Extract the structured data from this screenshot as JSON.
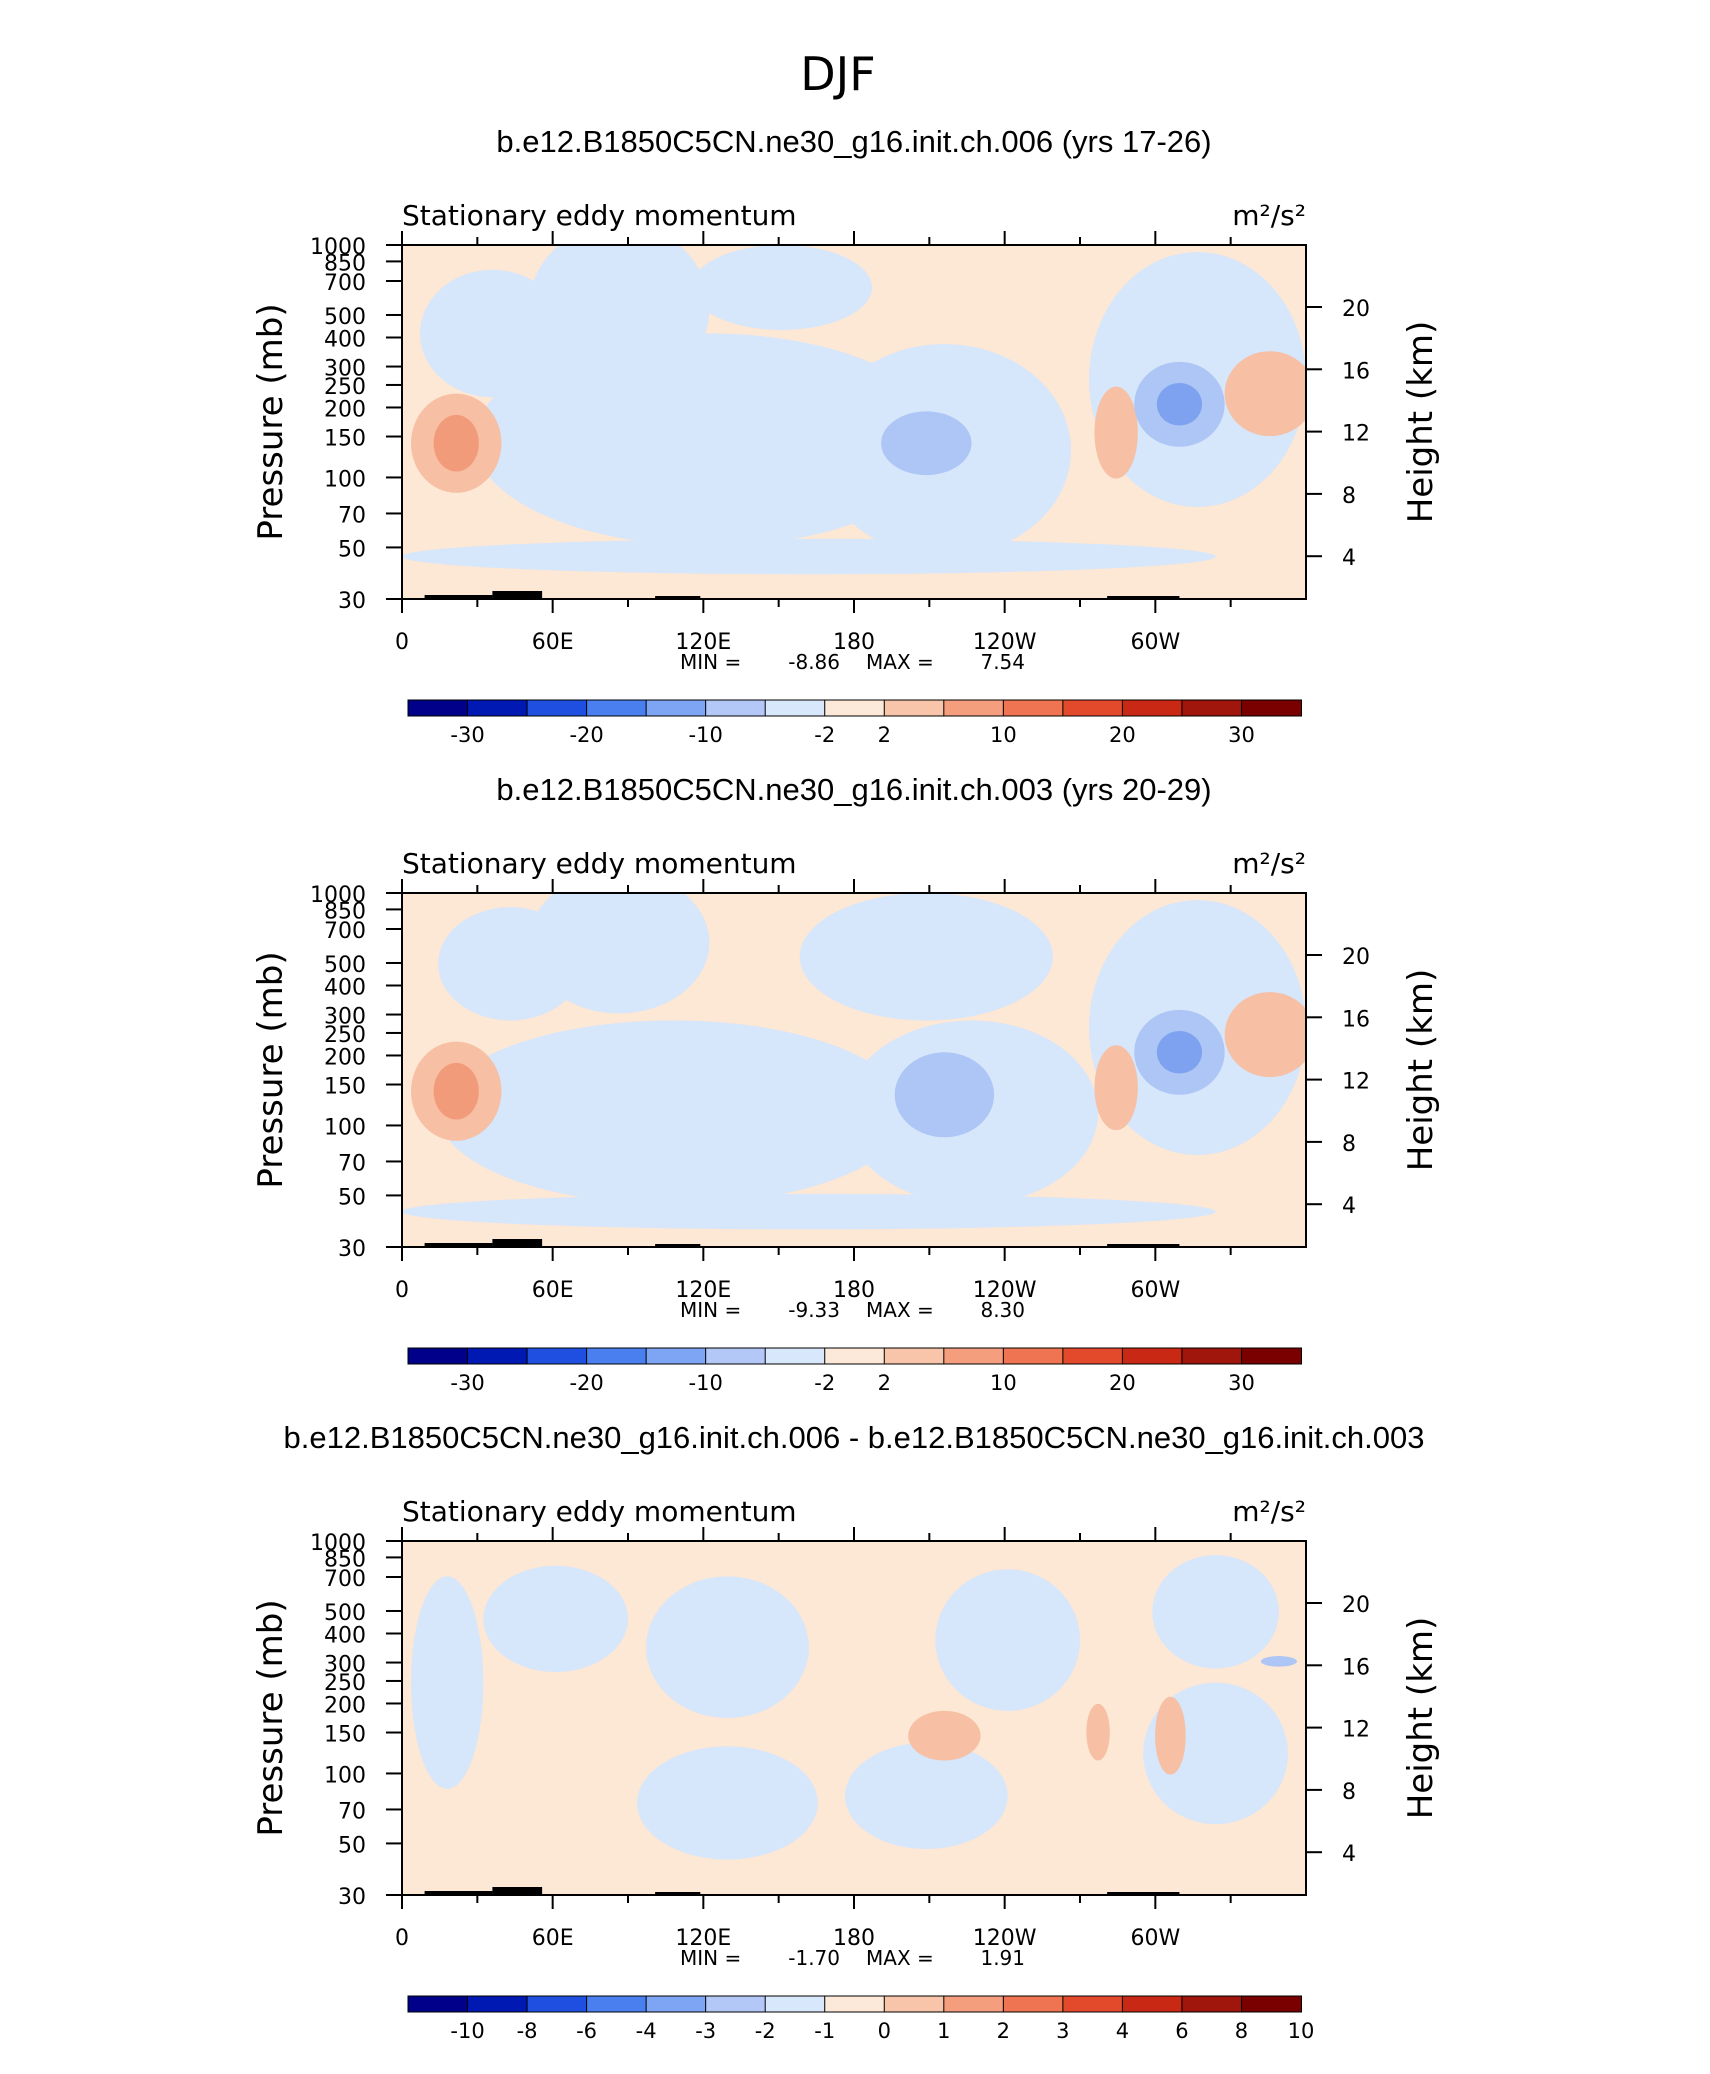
{
  "figure_title": "DJF",
  "chart_data": [
    {
      "type": "heatmap",
      "title": "b.e12.B1850C5CN.ne30_g16.init.ch.006 (yrs 17-26)",
      "left_string": "Stationary eddy momentum",
      "units": "m²/s²",
      "ylabel": "Pressure (mb)",
      "ylabel_right": "Height (km)",
      "x_tick_labels": [
        "0",
        "60E",
        "120E",
        "180",
        "120W",
        "60W"
      ],
      "y_tick_labels": [
        "30",
        "50",
        "70",
        "100",
        "150",
        "200",
        "250",
        "300",
        "400",
        "500",
        "700",
        "850",
        "1000"
      ],
      "y_right_tick_labels": [
        "20",
        "16",
        "12",
        "8",
        "4"
      ],
      "y_scale": "log",
      "ylim": [
        1000,
        30
      ],
      "min_label": "MIN =",
      "min_value": "-8.86",
      "max_label": "MAX =",
      "max_value": "7.54",
      "colorbar_labels": [
        "-30",
        "-20",
        "-10",
        "-2",
        "2",
        "10",
        "20",
        "30"
      ]
    },
    {
      "type": "heatmap",
      "title": "b.e12.B1850C5CN.ne30_g16.init.ch.003 (yrs 20-29)",
      "left_string": "Stationary eddy momentum",
      "units": "m²/s²",
      "ylabel": "Pressure (mb)",
      "ylabel_right": "Height (km)",
      "x_tick_labels": [
        "0",
        "60E",
        "120E",
        "180",
        "120W",
        "60W"
      ],
      "y_tick_labels": [
        "30",
        "50",
        "70",
        "100",
        "150",
        "200",
        "250",
        "300",
        "400",
        "500",
        "700",
        "850",
        "1000"
      ],
      "y_right_tick_labels": [
        "20",
        "16",
        "12",
        "8",
        "4"
      ],
      "y_scale": "log",
      "ylim": [
        1000,
        30
      ],
      "min_label": "MIN =",
      "min_value": "-9.33",
      "max_label": "MAX =",
      "max_value": "8.30",
      "colorbar_labels": [
        "-30",
        "-20",
        "-10",
        "-2",
        "2",
        "10",
        "20",
        "30"
      ]
    },
    {
      "type": "heatmap",
      "title": "b.e12.B1850C5CN.ne30_g16.init.ch.006 - b.e12.B1850C5CN.ne30_g16.init.ch.003",
      "left_string": "Stationary eddy momentum",
      "units": "m²/s²",
      "ylabel": "Pressure (mb)",
      "ylabel_right": "Height (km)",
      "x_tick_labels": [
        "0",
        "60E",
        "120E",
        "180",
        "120W",
        "60W"
      ],
      "y_tick_labels": [
        "30",
        "50",
        "70",
        "100",
        "150",
        "200",
        "250",
        "300",
        "400",
        "500",
        "700",
        "850",
        "1000"
      ],
      "y_right_tick_labels": [
        "20",
        "16",
        "12",
        "8",
        "4"
      ],
      "y_scale": "log",
      "ylim": [
        1000,
        30
      ],
      "min_label": "MIN =",
      "min_value": "-1.70",
      "max_label": "MAX =",
      "max_value": "1.91",
      "colorbar_labels": [
        "-10",
        "-8",
        "-6",
        "-4",
        "-3",
        "-2",
        "-1",
        "0",
        "1",
        "2",
        "3",
        "4",
        "6",
        "8",
        "10"
      ]
    }
  ],
  "colors": {
    "colorbar": [
      "#00008a",
      "#0019b3",
      "#1f4fe0",
      "#4a7ff0",
      "#7ea4f4",
      "#b3c8f7",
      "#d9e7fd",
      "#fde9d9",
      "#f8c5aa",
      "#f59e7d",
      "#ef7552",
      "#e34a2b",
      "#c92814",
      "#a0150c",
      "#7a0000"
    ],
    "contour_light_blue": "#d6e6fb",
    "contour_mid_blue": "#aec6f5",
    "contour_strong_blue": "#7ea1f0",
    "contour_light_orange": "#fde7d5",
    "contour_mid_orange": "#f7bfa3",
    "contour_strong_orange": "#f29b7b",
    "topography": "#000000"
  }
}
